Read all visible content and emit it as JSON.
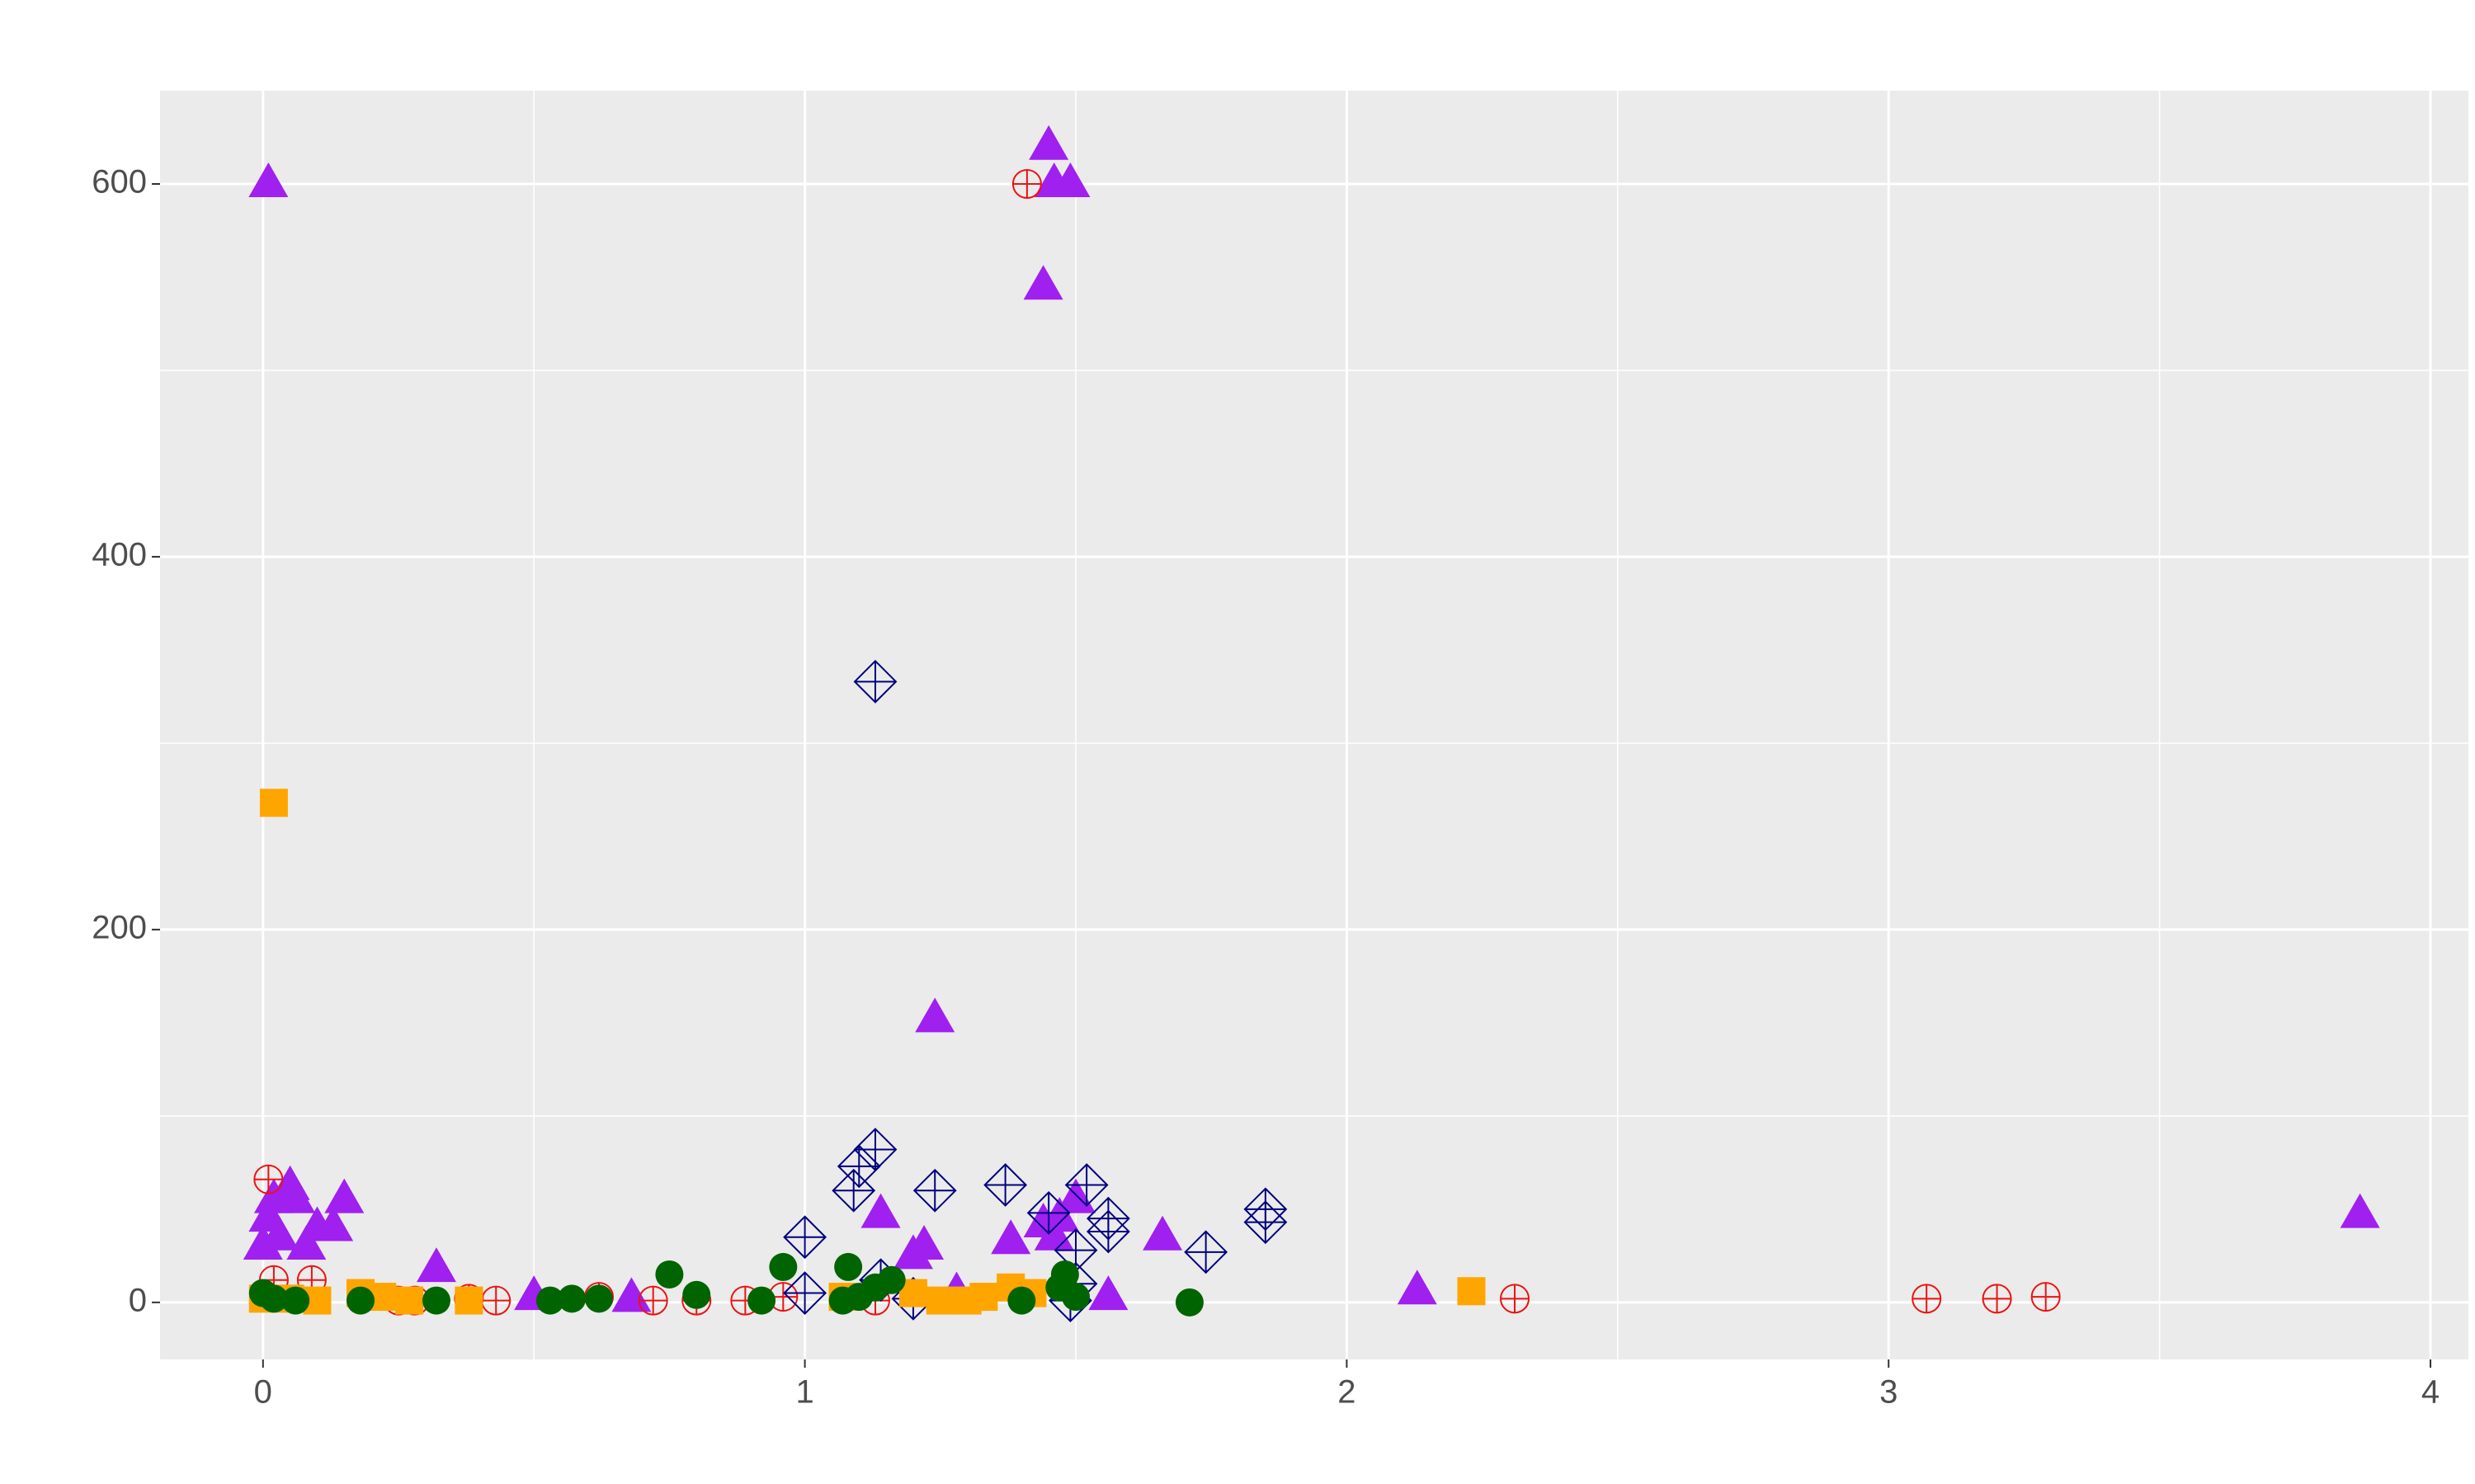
{
  "chart_data": {
    "type": "scatter",
    "xlim": [
      -0.19,
      4.07
    ],
    "ylim": [
      -30.6,
      650
    ],
    "xticks": [
      0,
      1,
      2,
      3,
      4
    ],
    "yticks": [
      0,
      200,
      400,
      600
    ],
    "xminor": [
      0.5,
      1.5,
      2.5,
      3.5
    ],
    "yminor": [
      100,
      300,
      500
    ],
    "grid": true,
    "series": [
      {
        "color": "#a020f0",
        "shape": "triangle",
        "x": [
          0.01,
          1.45,
          1.46,
          1.49,
          1.44,
          1.24,
          0.01,
          0.02,
          0.05,
          0.06,
          0.0,
          0.03,
          0.08,
          0.1,
          0.13,
          0.15,
          0.32,
          0.5,
          0.68,
          1.14,
          1.2,
          1.22,
          1.38,
          1.44,
          1.47,
          1.5,
          1.46,
          1.56,
          1.66,
          2.13,
          3.87,
          1.28
        ],
        "values": [
          600,
          620,
          600,
          600,
          545,
          152,
          45,
          55,
          62,
          55,
          30,
          35,
          30,
          40,
          40,
          55,
          18,
          3,
          2,
          47,
          25,
          30,
          33,
          42,
          45,
          55,
          35,
          3,
          35,
          6,
          47,
          5
        ]
      },
      {
        "color": "#ee1111",
        "shape": "circle-plus",
        "x": [
          1.41,
          0.01,
          0.02,
          0.09,
          0.38,
          0.43,
          0.62,
          0.72,
          0.8,
          0.89,
          0.96,
          1.13,
          2.31,
          3.07,
          3.2,
          3.29,
          0.25,
          0.28
        ],
        "values": [
          600,
          66,
          12,
          12,
          2,
          1,
          3,
          1,
          1,
          1,
          3,
          1,
          2,
          2,
          2,
          3,
          1,
          1
        ]
      },
      {
        "color": "#000080",
        "shape": "diamond-plus",
        "x": [
          1.13,
          1.1,
          1.13,
          1.09,
          1.24,
          1.37,
          1.45,
          1.52,
          1.56,
          1.56,
          1.85,
          1.85,
          1.74,
          1.0,
          1.0,
          1.14,
          1.2,
          1.5,
          1.49,
          1.5
        ],
        "values": [
          333,
          73,
          82,
          60,
          60,
          63,
          48,
          63,
          45,
          38,
          50,
          43,
          27,
          35,
          5,
          12,
          2,
          10,
          1,
          28
        ]
      },
      {
        "color": "#ffa500",
        "shape": "square",
        "x": [
          0.02,
          2.23,
          0.0,
          0.05,
          0.1,
          0.18,
          0.22,
          0.27,
          0.38,
          1.2,
          1.25,
          1.3,
          1.33,
          1.38,
          1.42,
          1.07
        ],
        "values": [
          268,
          6,
          2,
          2,
          1,
          5,
          3,
          1,
          1,
          5,
          1,
          1,
          3,
          8,
          5,
          3
        ]
      },
      {
        "color": "#006400",
        "shape": "circle",
        "x": [
          0.0,
          0.02,
          0.06,
          0.18,
          0.32,
          0.53,
          0.57,
          0.62,
          0.75,
          0.8,
          0.92,
          0.96,
          1.08,
          1.07,
          1.1,
          1.13,
          1.16,
          1.4,
          1.47,
          1.48,
          1.5,
          1.71
        ],
        "values": [
          5,
          2,
          1,
          1,
          1,
          1,
          2,
          2,
          15,
          4,
          1,
          19,
          19,
          1,
          3,
          8,
          12,
          1,
          8,
          15,
          3,
          0
        ]
      }
    ]
  }
}
